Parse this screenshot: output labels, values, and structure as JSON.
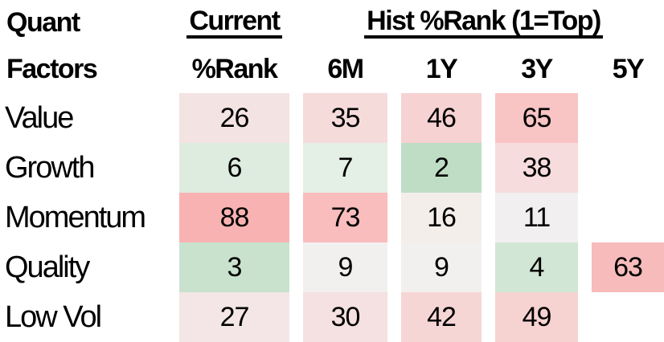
{
  "title": "Quant Factors percentile rank heatmap",
  "header": {
    "col1_line1": "Quant",
    "col1_line2": "Factors",
    "current_group": "Current",
    "current_sub": "%Rank",
    "hist_group": "Hist %Rank (1=Top)",
    "hist_subs": [
      "6M",
      "1Y",
      "3Y",
      "5Y"
    ]
  },
  "rows": [
    {
      "label": "Value",
      "cells": [
        {
          "value": "26",
          "bg": "#f4e3e3"
        },
        {
          "value": "35",
          "bg": "#f6dbdb"
        },
        {
          "value": "46",
          "bg": "#f7d2d2"
        },
        {
          "value": "65",
          "bg": "#f8c4c4"
        },
        {
          "value": null,
          "bg": null
        }
      ]
    },
    {
      "label": "Growth",
      "cells": [
        {
          "value": "6",
          "bg": "#deecdf"
        },
        {
          "value": "7",
          "bg": "#e4efe5"
        },
        {
          "value": "2",
          "bg": "#bfddc5"
        },
        {
          "value": "38",
          "bg": "#f6dcdc"
        },
        {
          "value": null,
          "bg": null
        }
      ]
    },
    {
      "label": "Momentum",
      "cells": [
        {
          "value": "88",
          "bg": "#f9b2b2"
        },
        {
          "value": "73",
          "bg": "#f9bdbd"
        },
        {
          "value": "16",
          "bg": "#f4eeeb"
        },
        {
          "value": "11",
          "bg": "#f1efef"
        },
        {
          "value": null,
          "bg": null
        }
      ]
    },
    {
      "label": "Quality",
      "cells": [
        {
          "value": "3",
          "bg": "#c9e2ce"
        },
        {
          "value": "9",
          "bg": "#f2f0ef"
        },
        {
          "value": "9",
          "bg": "#f2f0ef"
        },
        {
          "value": "4",
          "bg": "#d1e6d4"
        },
        {
          "value": "63",
          "bg": "#f8bbbb"
        }
      ]
    },
    {
      "label": "Low Vol",
      "cells": [
        {
          "value": "27",
          "bg": "#f4e6e6"
        },
        {
          "value": "30",
          "bg": "#f5e1e1"
        },
        {
          "value": "42",
          "bg": "#f6d6d5"
        },
        {
          "value": "49",
          "bg": "#f6d2d1"
        },
        {
          "value": null,
          "bg": null
        }
      ]
    }
  ],
  "chart_data": {
    "type": "heatmap",
    "title": "Quant Factors — Current and Historical %Rank (1=Top)",
    "row_label_header": "Quant Factors",
    "column_groups": [
      {
        "label": "Current",
        "columns": [
          "%Rank"
        ]
      },
      {
        "label": "Hist %Rank (1=Top)",
        "columns": [
          "6M",
          "1Y",
          "3Y",
          "5Y"
        ]
      }
    ],
    "columns": [
      "Current %Rank",
      "6M",
      "1Y",
      "3Y",
      "5Y"
    ],
    "rows": [
      "Value",
      "Growth",
      "Momentum",
      "Quality",
      "Low Vol"
    ],
    "values": [
      [
        26,
        35,
        46,
        65,
        null
      ],
      [
        6,
        7,
        2,
        38,
        null
      ],
      [
        88,
        73,
        16,
        11,
        null
      ],
      [
        3,
        9,
        9,
        4,
        63
      ],
      [
        27,
        30,
        42,
        49,
        null
      ]
    ],
    "value_range": [
      1,
      100
    ],
    "color_scale": {
      "low_color_hex": "#bfddc5",
      "mid_color_hex": "#f1efef",
      "high_color_hex": "#f9b2b2",
      "low_means": "rank near 1 (top), shaded green",
      "high_means": "rank near 100 (bottom), shaded red/pink"
    },
    "notes": "5Y value shown only for Quality (63); other 5Y cells are blank."
  },
  "colors": {
    "background": "#ffffff",
    "text": "#000000",
    "underline": "#000000"
  }
}
